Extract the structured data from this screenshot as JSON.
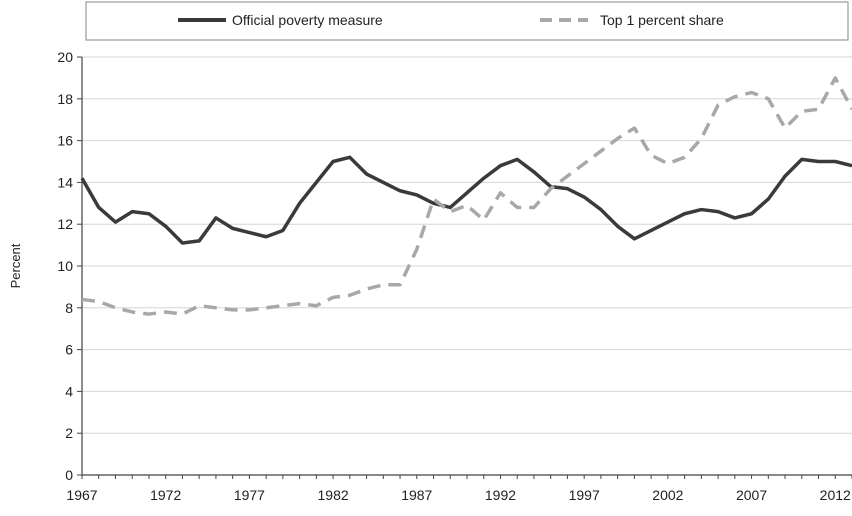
{
  "chart_data": {
    "type": "line",
    "ylabel": "Percent",
    "ylim": [
      0,
      20
    ],
    "yticks": [
      "0",
      "2",
      "4",
      "6",
      "8",
      "10",
      "12",
      "14",
      "16",
      "18",
      "20"
    ],
    "xlim": [
      1967,
      2013
    ],
    "xticks": [
      "1967",
      "1972",
      "1977",
      "1982",
      "1987",
      "1992",
      "1997",
      "2002",
      "2007",
      "2012"
    ],
    "grid": "horizontal",
    "legend_position": "top",
    "series": [
      {
        "name": "Official poverty measure",
        "color": "#3a3a3a",
        "style": "solid",
        "x": [
          1967,
          1968,
          1969,
          1970,
          1971,
          1972,
          1973,
          1974,
          1975,
          1976,
          1977,
          1978,
          1979,
          1980,
          1981,
          1982,
          1983,
          1984,
          1985,
          1986,
          1987,
          1988,
          1989,
          1990,
          1991,
          1992,
          1993,
          1994,
          1995,
          1996,
          1997,
          1998,
          1999,
          2000,
          2001,
          2002,
          2003,
          2004,
          2005,
          2006,
          2007,
          2008,
          2009,
          2010,
          2011,
          2012,
          2013
        ],
        "values": [
          14.2,
          12.8,
          12.1,
          12.6,
          12.5,
          11.9,
          11.1,
          11.2,
          12.3,
          11.8,
          11.6,
          11.4,
          11.7,
          13.0,
          14.0,
          15.0,
          15.2,
          14.4,
          14.0,
          13.6,
          13.4,
          13.0,
          12.8,
          13.5,
          14.2,
          14.8,
          15.1,
          14.5,
          13.8,
          13.7,
          13.3,
          12.7,
          11.9,
          11.3,
          11.7,
          12.1,
          12.5,
          12.7,
          12.6,
          12.3,
          12.5,
          13.2,
          14.3,
          15.1,
          15.0,
          15.0,
          14.8
        ]
      },
      {
        "name": "Top 1 percent share",
        "color": "#a8a8a8",
        "style": "dashed",
        "x": [
          1967,
          1968,
          1969,
          1970,
          1971,
          1972,
          1973,
          1974,
          1975,
          1976,
          1977,
          1978,
          1979,
          1980,
          1981,
          1982,
          1983,
          1984,
          1985,
          1986,
          1987,
          1988,
          1989,
          1990,
          1991,
          1992,
          1993,
          1994,
          1995,
          1996,
          1997,
          1998,
          1999,
          2000,
          2001,
          2002,
          2003,
          2004,
          2005,
          2006,
          2007,
          2008,
          2009,
          2010,
          2011,
          2012,
          2013
        ],
        "values": [
          8.4,
          8.3,
          8.0,
          7.8,
          7.7,
          7.8,
          7.7,
          8.1,
          8.0,
          7.9,
          7.9,
          8.0,
          8.1,
          8.2,
          8.1,
          8.5,
          8.6,
          8.9,
          9.1,
          9.1,
          10.8,
          13.2,
          12.6,
          12.9,
          12.2,
          13.5,
          12.8,
          12.8,
          13.7,
          14.3,
          14.9,
          15.5,
          16.1,
          16.6,
          15.3,
          14.9,
          15.2,
          16.1,
          17.7,
          18.1,
          18.3,
          18.0,
          16.6,
          17.4,
          17.5,
          19.0,
          17.5
        ]
      }
    ]
  }
}
